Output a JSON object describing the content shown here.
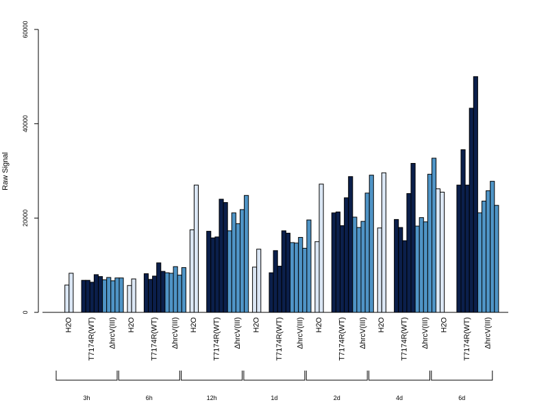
{
  "chart_data": {
    "type": "bar",
    "ylabel": "Raw Signal",
    "ylim": [
      0,
      60000
    ],
    "y_ticks": [
      "0",
      "20000",
      "40000",
      "60000"
    ],
    "treatments": [
      "H2O",
      "T7174R(WT)",
      "ΔhrcV(III)"
    ],
    "colors": {
      "H2O": "#dbe7f5",
      "T7174R(WT)": "#0b1f4b",
      "ΔhrcV(III)": "#4f94c6"
    },
    "groups": [
      {
        "label": "3h",
        "H2O": [
          0,
          5800,
          8300
        ],
        "T7174R(WT)": [
          6800,
          6800,
          6400,
          8000,
          7600
        ],
        "ΔhrcV(III)": [
          6900,
          7400,
          6700,
          7300,
          7300
        ]
      },
      {
        "label": "6h",
        "H2O": [
          0,
          5700,
          7100
        ],
        "T7174R(WT)": [
          8200,
          7000,
          7700,
          10500,
          8700
        ],
        "ΔhrcV(III)": [
          8400,
          8300,
          9700,
          7900,
          9500
        ]
      },
      {
        "label": "12h",
        "H2O": [
          0,
          17500,
          27000
        ],
        "T7174R(WT)": [
          17200,
          15800,
          16000,
          24000,
          23300
        ],
        "ΔhrcV(III)": [
          17300,
          21100,
          18800,
          21800,
          24800
        ]
      },
      {
        "label": "1d",
        "H2O": [
          0,
          9600,
          13400
        ],
        "T7174R(WT)": [
          8400,
          13100,
          9800,
          17300,
          16800
        ],
        "ΔhrcV(III)": [
          14800,
          14700,
          15900,
          13600,
          19600
        ]
      },
      {
        "label": "2d",
        "H2O": [
          0,
          15000,
          27200
        ],
        "T7174R(WT)": [
          21100,
          21300,
          18400,
          24300,
          28800
        ],
        "ΔhrcV(III)": [
          20200,
          18000,
          19300,
          25300,
          29100
        ]
      },
      {
        "label": "4d",
        "H2O": [
          0,
          17900,
          29600
        ],
        "T7174R(WT)": [
          19700,
          18000,
          15200,
          25200,
          31600
        ],
        "ΔhrcV(III)": [
          18300,
          20100,
          19200,
          29300,
          32700
        ]
      },
      {
        "label": "6d",
        "H2O": [
          26200,
          25500,
          0
        ],
        "T7174R(WT)": [
          27000,
          34500,
          27000,
          43300,
          50000
        ],
        "ΔhrcV(III)": [
          21100,
          23600,
          25800,
          27800,
          22700
        ]
      }
    ]
  }
}
